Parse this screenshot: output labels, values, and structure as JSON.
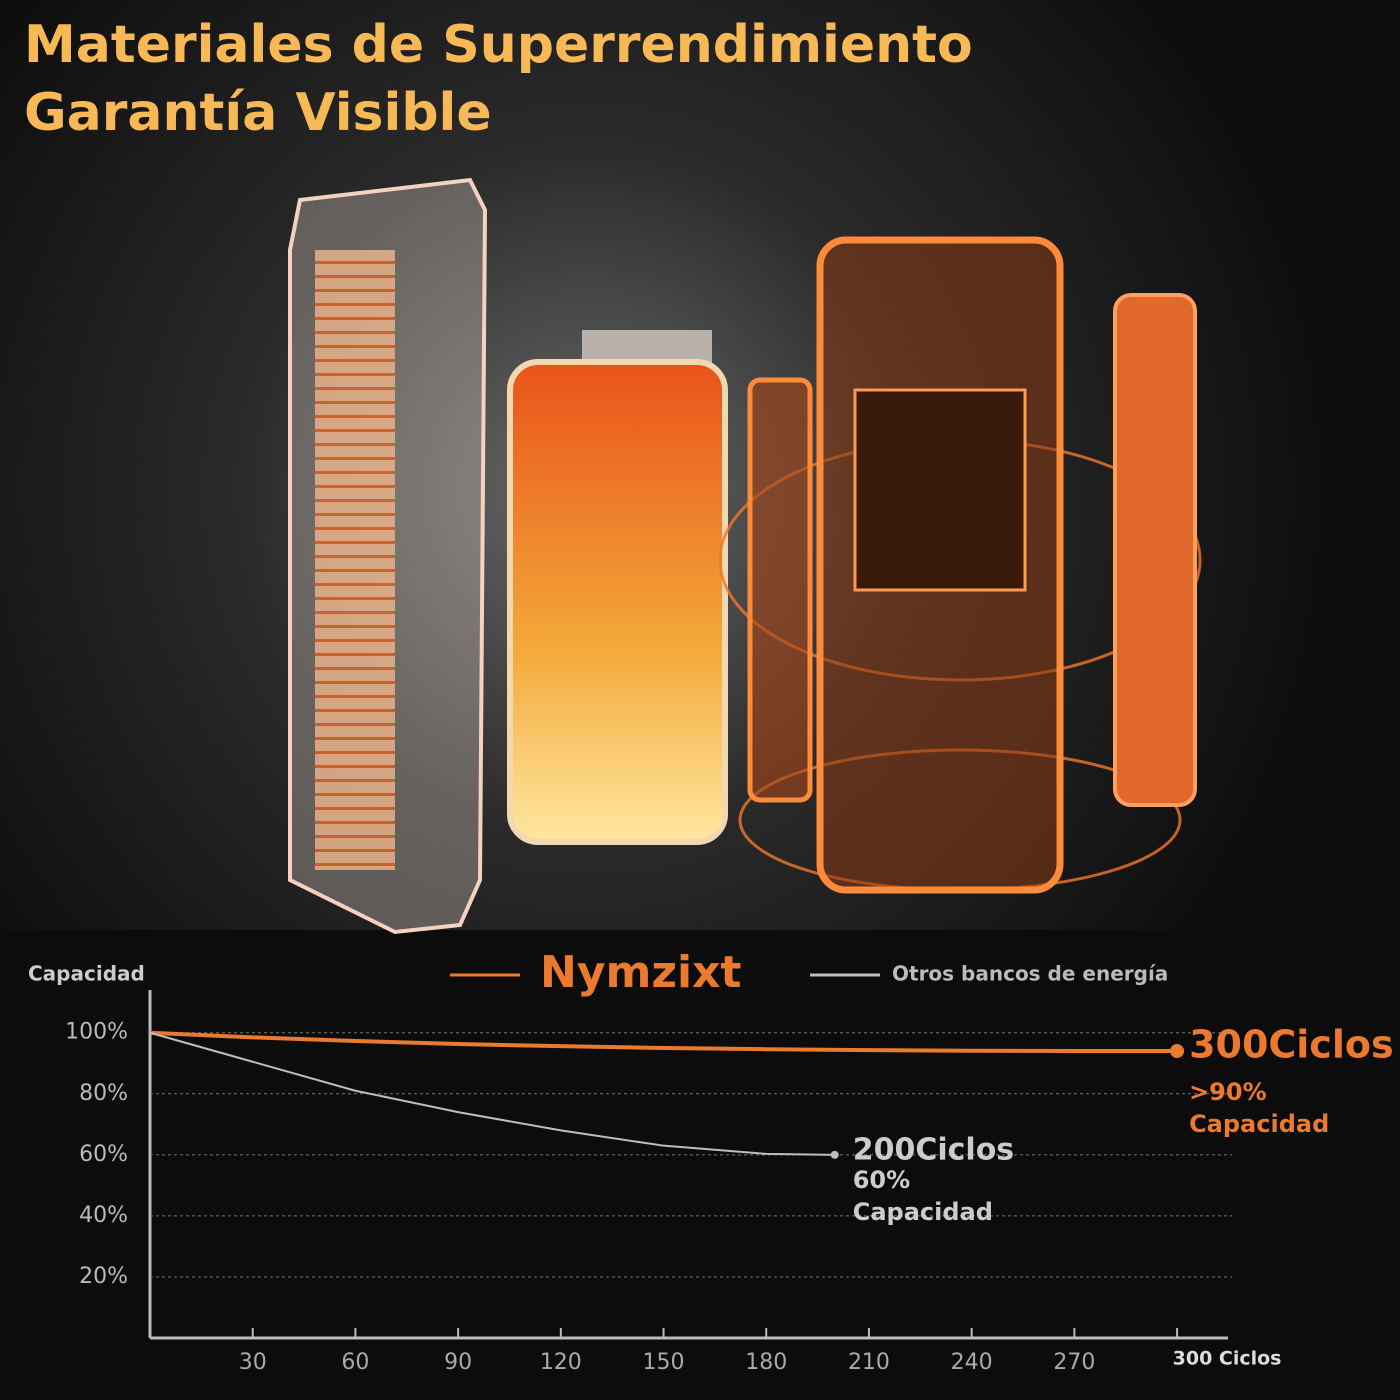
{
  "chart_data": {
    "type": "line",
    "title": "Materiales de Superrendimiento",
    "subtitle": "Garantía Visible",
    "y_label": "Capacidad",
    "series": [
      {
        "name": "Nymzixt",
        "color": "#ec7a2e",
        "x": [
          0,
          30,
          60,
          90,
          120,
          150,
          180,
          210,
          240,
          270,
          300
        ],
        "values": [
          100,
          98.5,
          97.3,
          96.3,
          95.6,
          95,
          94.6,
          94.3,
          94.1,
          94,
          94
        ]
      },
      {
        "name": "Otros bancos de energía",
        "color": "#bdbdbd",
        "x": [
          0,
          30,
          60,
          90,
          120,
          150,
          180,
          200
        ],
        "values": [
          100,
          90.5,
          81,
          74,
          68,
          63,
          60.3,
          60
        ]
      }
    ],
    "annotations": [
      [
        "300Ciclos",
        ">90%",
        "Capacidad"
      ],
      [
        "200Ciclos",
        "60%",
        "Capacidad"
      ]
    ],
    "xlim": [
      0,
      314
    ],
    "ylim": [
      0,
      114
    ],
    "xticks": [
      30,
      60,
      90,
      120,
      150,
      180,
      210,
      240,
      270,
      {
        "value": 300,
        "label": "300 Ciclos"
      }
    ],
    "yticks": [
      {
        "value": 20,
        "label": "20%"
      },
      {
        "value": 40,
        "label": "40%"
      },
      {
        "value": 60,
        "label": "60%"
      },
      {
        "value": 80,
        "label": "80%"
      },
      {
        "value": 100,
        "label": "100%"
      }
    ],
    "grid": true
  }
}
